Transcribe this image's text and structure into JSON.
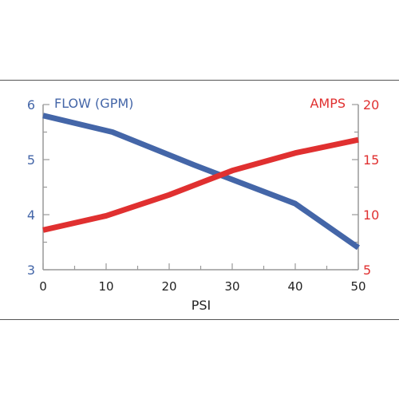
{
  "chart_data": {
    "type": "line",
    "xlabel": "PSI",
    "x": [
      0,
      10,
      20,
      30,
      40,
      50
    ],
    "xlim": [
      0,
      50
    ],
    "x_ticks": [
      "0",
      "10",
      "20",
      "30",
      "40",
      "50"
    ],
    "grid": false,
    "left_axis": {
      "label": "FLOW (GPM)",
      "color": "#4466a8",
      "ylim": [
        3,
        6
      ],
      "ticks": [
        "3",
        "4",
        "5",
        "6"
      ]
    },
    "right_axis": {
      "label": "AMPS",
      "color": "#e03030",
      "ylim": [
        5,
        20
      ],
      "ticks": [
        "5",
        "10",
        "15",
        "20"
      ]
    },
    "series": [
      {
        "name": "FLOW (GPM)",
        "axis": "left",
        "color": "#4466a8",
        "x": [
          0,
          11,
          24,
          40,
          50
        ],
        "values": [
          5.8,
          5.5,
          4.9,
          4.2,
          3.4
        ]
      },
      {
        "name": "AMPS",
        "axis": "right",
        "color": "#e03030",
        "x": [
          0,
          10,
          20,
          30,
          40,
          50
        ],
        "values": [
          8.6,
          9.9,
          11.8,
          14.0,
          15.6,
          16.8
        ]
      }
    ]
  }
}
